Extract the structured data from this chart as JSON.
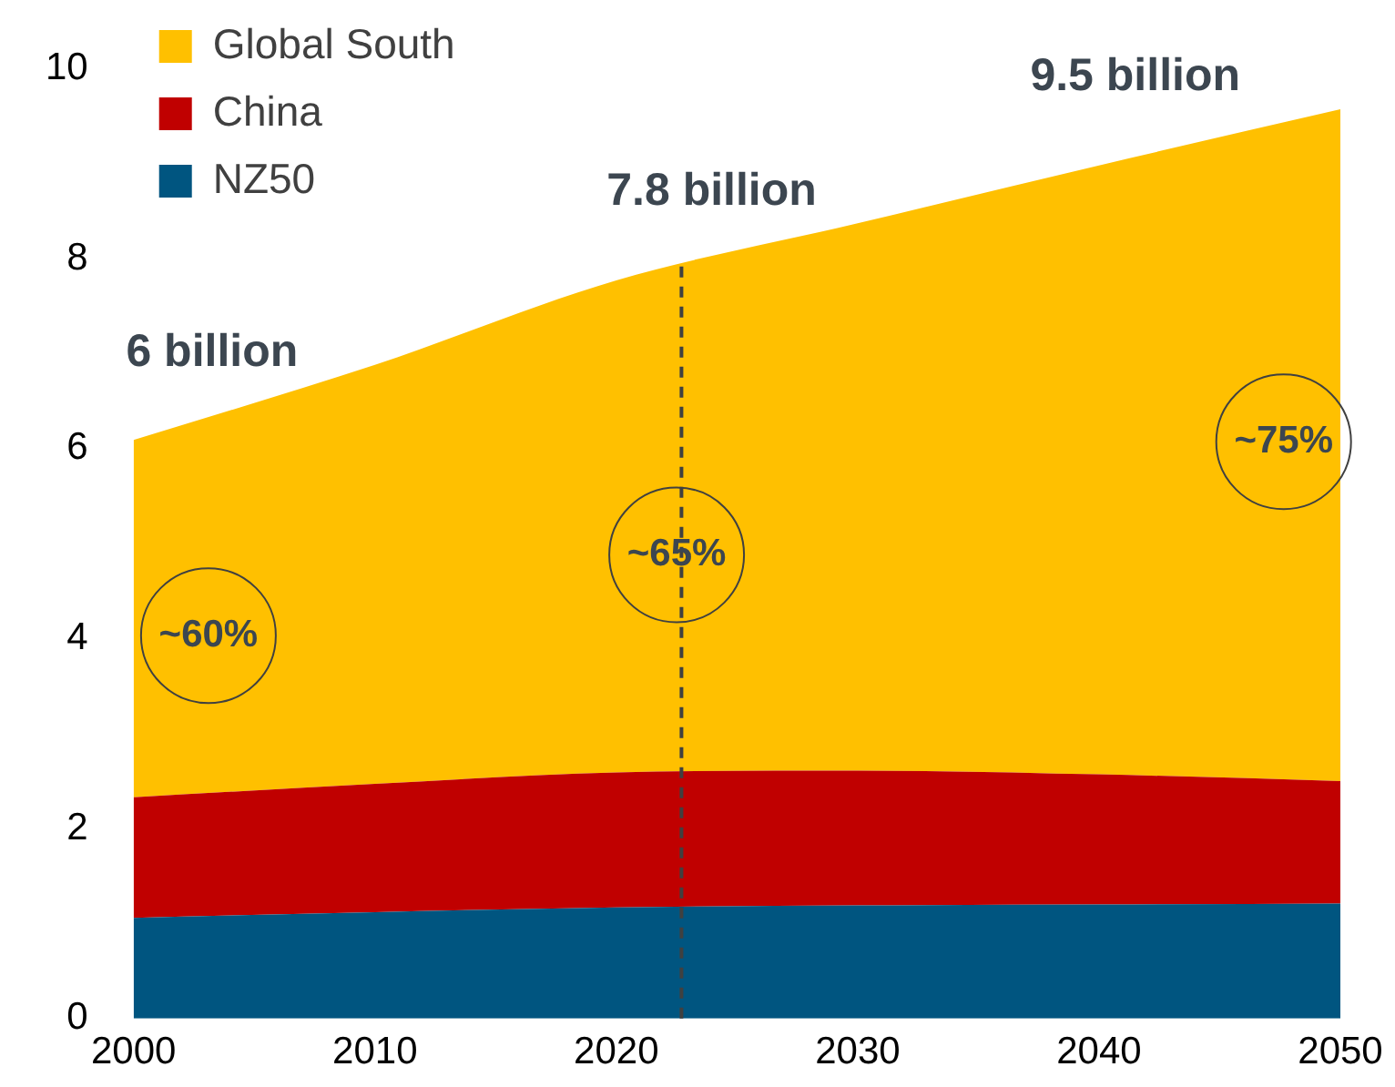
{
  "chart_data": {
    "type": "area",
    "stacked": true,
    "x": [
      2000,
      2010,
      2020,
      2030,
      2040,
      2050
    ],
    "series": [
      {
        "name": "NZ50",
        "color": "#005580",
        "values": [
          1.06,
          1.12,
          1.17,
          1.19,
          1.2,
          1.21
        ]
      },
      {
        "name": "China",
        "color": "#c00000",
        "values": [
          1.27,
          1.35,
          1.42,
          1.42,
          1.37,
          1.29
        ]
      },
      {
        "name": "Global South",
        "color": "#ffc000",
        "values": [
          3.76,
          4.41,
          5.18,
          5.76,
          6.41,
          7.07
        ]
      }
    ],
    "xlim": [
      2000,
      2050
    ],
    "xticks": [
      2000,
      2010,
      2020,
      2030,
      2040,
      2050
    ],
    "ylim": [
      0,
      10
    ],
    "yticks": [
      0,
      2,
      4,
      6,
      8,
      10
    ],
    "grid": false,
    "legend": "top left",
    "ref_lines": [
      {
        "axis": "x",
        "value": 2022.7,
        "color": "#404040",
        "line_style": "dashed"
      }
    ],
    "annotations": [
      "6 billion",
      "7.8 billion",
      "9.5 billion",
      "~60%",
      "~65%",
      "~75%"
    ]
  }
}
